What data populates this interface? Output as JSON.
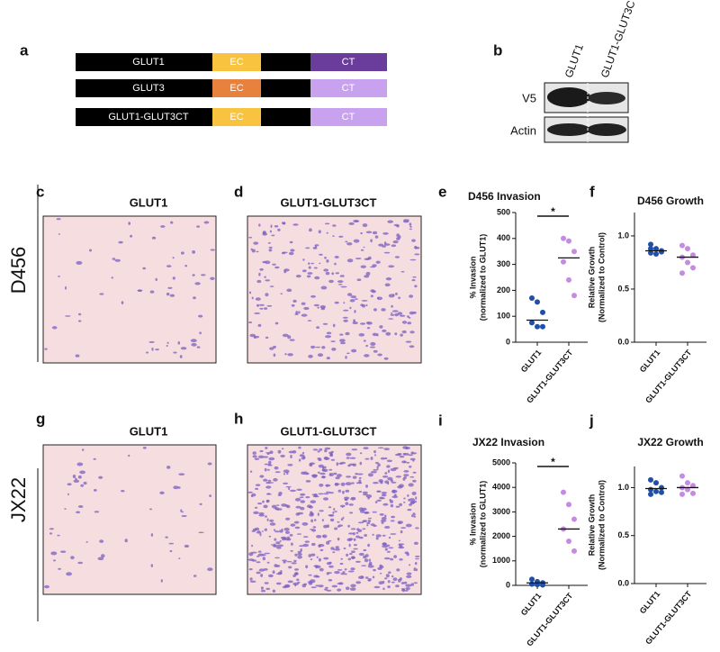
{
  "letters": [
    "a",
    "b",
    "c",
    "d",
    "e",
    "f",
    "g",
    "h",
    "i",
    "j"
  ],
  "construct_rows": [
    {
      "label": "GLUT1",
      "ec": "EC",
      "ct": "CT",
      "ec_color": "#f8c33f",
      "ct_color": "#6a3d9c"
    },
    {
      "label": "GLUT3",
      "ec": "EC",
      "ct": "CT",
      "ec_color": "#e6813e",
      "ct_color": "#c9a2ef"
    },
    {
      "label": "GLUT1-GLUT3CT",
      "ec": "EC",
      "ct": "CT",
      "ec_color": "#f8c33f",
      "ct_color": "#c9a2ef"
    }
  ],
  "blot": {
    "lanes": [
      "GLUT1",
      "GLUT1-GLUT3CT"
    ],
    "rows": [
      "V5",
      "Actin"
    ]
  },
  "row_labels": [
    "D456",
    "JX22"
  ],
  "image_titles": [
    "GLUT1",
    "GLUT1-GLUT3CT",
    "GLUT1",
    "GLUT1-GLUT3CT"
  ],
  "chart_data": [
    {
      "type": "strip",
      "title": "D456 Invasion",
      "ylabel": [
        "% Invasion",
        "(normalized to GLUT1)"
      ],
      "categories": [
        "GLUT1",
        "GLUT1-GLUT3CT"
      ],
      "series": [
        {
          "color": "#1f4fa8",
          "values": [
            170,
            155,
            115,
            75,
            60,
            60
          ],
          "median": 85
        },
        {
          "color": "#c58be0",
          "values": [
            400,
            390,
            350,
            310,
            240,
            180
          ],
          "median": 325
        }
      ],
      "significance": "*",
      "ylim": [
        0,
        500
      ],
      "yticks": [
        0,
        100,
        200,
        300,
        400,
        500
      ]
    },
    {
      "type": "strip",
      "title": "D456 Growth",
      "ylabel": [
        "Relative Growth",
        "(Normalized to Control)"
      ],
      "categories": [
        "GLUT1",
        "GLUT1-GLUT3CT"
      ],
      "series": [
        {
          "color": "#1f4fa8",
          "values": [
            0.92,
            0.88,
            0.85,
            0.84,
            0.83,
            0.86,
            0.88
          ],
          "median": 0.86
        },
        {
          "color": "#c58be0",
          "values": [
            0.91,
            0.88,
            0.82,
            0.8,
            0.75,
            0.7,
            0.65
          ],
          "median": 0.8
        }
      ],
      "ylim": [
        0,
        1.22
      ],
      "yticks": [
        {
          "value": 0,
          "label": "0.0"
        },
        {
          "value": 0.5,
          "label": "0.5"
        },
        {
          "value": 1,
          "label": "1.0"
        }
      ]
    },
    {
      "type": "strip",
      "title": "JX22 Invasion",
      "ylabel": [
        "% Invasion",
        "(normalized to GLUT1)"
      ],
      "categories": [
        "GLUT1",
        "GLUT1-GLUT3CT"
      ],
      "series": [
        {
          "color": "#1f4fa8",
          "values": [
            250,
            150,
            100,
            50,
            30,
            20
          ],
          "median": 100
        },
        {
          "color": "#c58be0",
          "values": [
            3800,
            3300,
            2700,
            2300,
            1800,
            1400
          ],
          "median": 2300
        }
      ],
      "significance": "*",
      "ylim": [
        0,
        5000
      ],
      "yticks": [
        0,
        1000,
        2000,
        3000,
        4000,
        5000
      ]
    },
    {
      "type": "strip",
      "title": "JX22 Growth",
      "ylabel": [
        "Relative Growth",
        "(Normalized to Control)"
      ],
      "categories": [
        "GLUT1",
        "GLUT1-GLUT3CT"
      ],
      "series": [
        {
          "color": "#1f4fa8",
          "values": [
            1.08,
            1.05,
            1.0,
            0.98,
            0.96,
            0.95,
            0.93
          ],
          "median": 0.99
        },
        {
          "color": "#c58be0",
          "values": [
            1.12,
            1.05,
            1.02,
            1.0,
            0.98,
            0.94,
            0.93
          ],
          "median": 1.0
        }
      ],
      "ylim": [
        0,
        1.22
      ],
      "yticks": [
        {
          "value": 0,
          "label": "0.0"
        },
        {
          "value": 0.5,
          "label": "0.5"
        },
        {
          "value": 1,
          "label": "1.0"
        }
      ]
    }
  ]
}
